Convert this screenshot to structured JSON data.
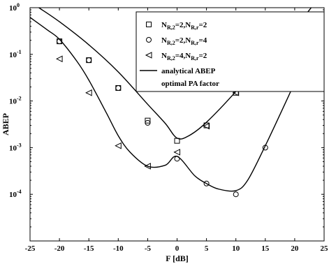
{
  "chart_data": {
    "type": "scatter",
    "xlabel": "F [dB]",
    "ylabel": "ABEP",
    "xlim": [
      -25,
      25
    ],
    "ylim": [
      1e-05,
      1
    ],
    "yscale": "log",
    "grid": false,
    "legend_position": "top-right",
    "x_ticks": [
      -25,
      -20,
      -15,
      -10,
      -5,
      0,
      5,
      10,
      15,
      20,
      25
    ],
    "x_tick_labels": [
      "-25",
      "-20",
      "-15",
      "-10",
      "-5",
      "0",
      "5",
      "10",
      "15",
      "20",
      "25"
    ],
    "y_ticks": [
      0.0001,
      0.001,
      0.01,
      0.1,
      1
    ],
    "y_tick_labels": [
      {
        "base": "10",
        "exp": "-4"
      },
      {
        "base": "10",
        "exp": "-3"
      },
      {
        "base": "10",
        "exp": "-2"
      },
      {
        "base": "10",
        "exp": "-1"
      },
      {
        "base": "10",
        "exp": "0"
      }
    ],
    "series": [
      {
        "marker": "square",
        "legend": {
          "parts": [
            "N",
            "R,2",
            "=2,N",
            "R,r",
            "=2"
          ]
        },
        "points": [
          [
            -20,
            0.19
          ],
          [
            -15,
            0.075
          ],
          [
            -10,
            0.019
          ],
          [
            -5,
            0.0038
          ],
          [
            0,
            0.0014
          ],
          [
            5,
            0.003
          ],
          [
            10,
            0.015
          ],
          [
            15,
            0.072
          ],
          [
            20,
            0.21
          ]
        ]
      },
      {
        "marker": "circle",
        "legend": {
          "parts": [
            "N",
            "R,2",
            "=2,N",
            "R,r",
            "=4"
          ]
        },
        "points": [
          [
            -20,
            0.19
          ],
          [
            -15,
            0.075
          ],
          [
            -10,
            0.019
          ],
          [
            -5,
            0.0034
          ],
          [
            0,
            0.00058
          ],
          [
            5,
            0.00017
          ],
          [
            10,
            0.0001
          ],
          [
            15,
            0.001
          ],
          [
            20,
            0.025
          ]
        ]
      },
      {
        "marker": "triangle-left",
        "legend": {
          "parts": [
            "N",
            "R,2",
            "=4,N",
            "R,r",
            "=2"
          ]
        },
        "points": [
          [
            -20,
            0.08
          ],
          [
            -15,
            0.015
          ],
          [
            -10,
            0.0011
          ],
          [
            -5,
            0.0004
          ],
          [
            0,
            0.0008
          ],
          [
            5,
            0.0029
          ],
          [
            10,
            0.015
          ],
          [
            15,
            0.071
          ],
          [
            20,
            0.22
          ]
        ]
      }
    ],
    "curves": [
      {
        "style": "solid",
        "points": [
          [
            -23.5,
            1
          ],
          [
            -20,
            0.5
          ],
          [
            -15,
            0.16
          ],
          [
            -10,
            0.042
          ],
          [
            -5,
            0.0085
          ],
          [
            -2,
            0.0033
          ],
          [
            0,
            0.0016
          ],
          [
            2,
            0.0018
          ],
          [
            5,
            0.0035
          ],
          [
            10,
            0.016
          ],
          [
            15,
            0.09
          ],
          [
            20,
            0.37
          ],
          [
            22.8,
            1
          ]
        ]
      },
      {
        "style": "solid",
        "points": [
          [
            -25,
            0.62
          ],
          [
            -22,
            0.33
          ],
          [
            -20,
            0.21
          ],
          [
            -17,
            0.07
          ],
          [
            -15,
            0.028
          ],
          [
            -12,
            0.0055
          ],
          [
            -10,
            0.0018
          ],
          [
            -8,
            0.0008
          ],
          [
            -5,
            0.0004
          ],
          [
            -2,
            0.00042
          ],
          [
            0,
            0.00065
          ],
          [
            3,
            0.00025
          ],
          [
            5,
            0.00017
          ],
          [
            7,
            0.00013
          ],
          [
            10,
            0.00012
          ],
          [
            12,
            0.0002
          ],
          [
            15,
            0.0011
          ],
          [
            18,
            0.007
          ],
          [
            20,
            0.025
          ],
          [
            22,
            0.1
          ],
          [
            25,
            0.72
          ]
        ]
      }
    ],
    "legend_line": {
      "line1": "analytical ABEP",
      "line2": "optimal PA factor"
    }
  }
}
